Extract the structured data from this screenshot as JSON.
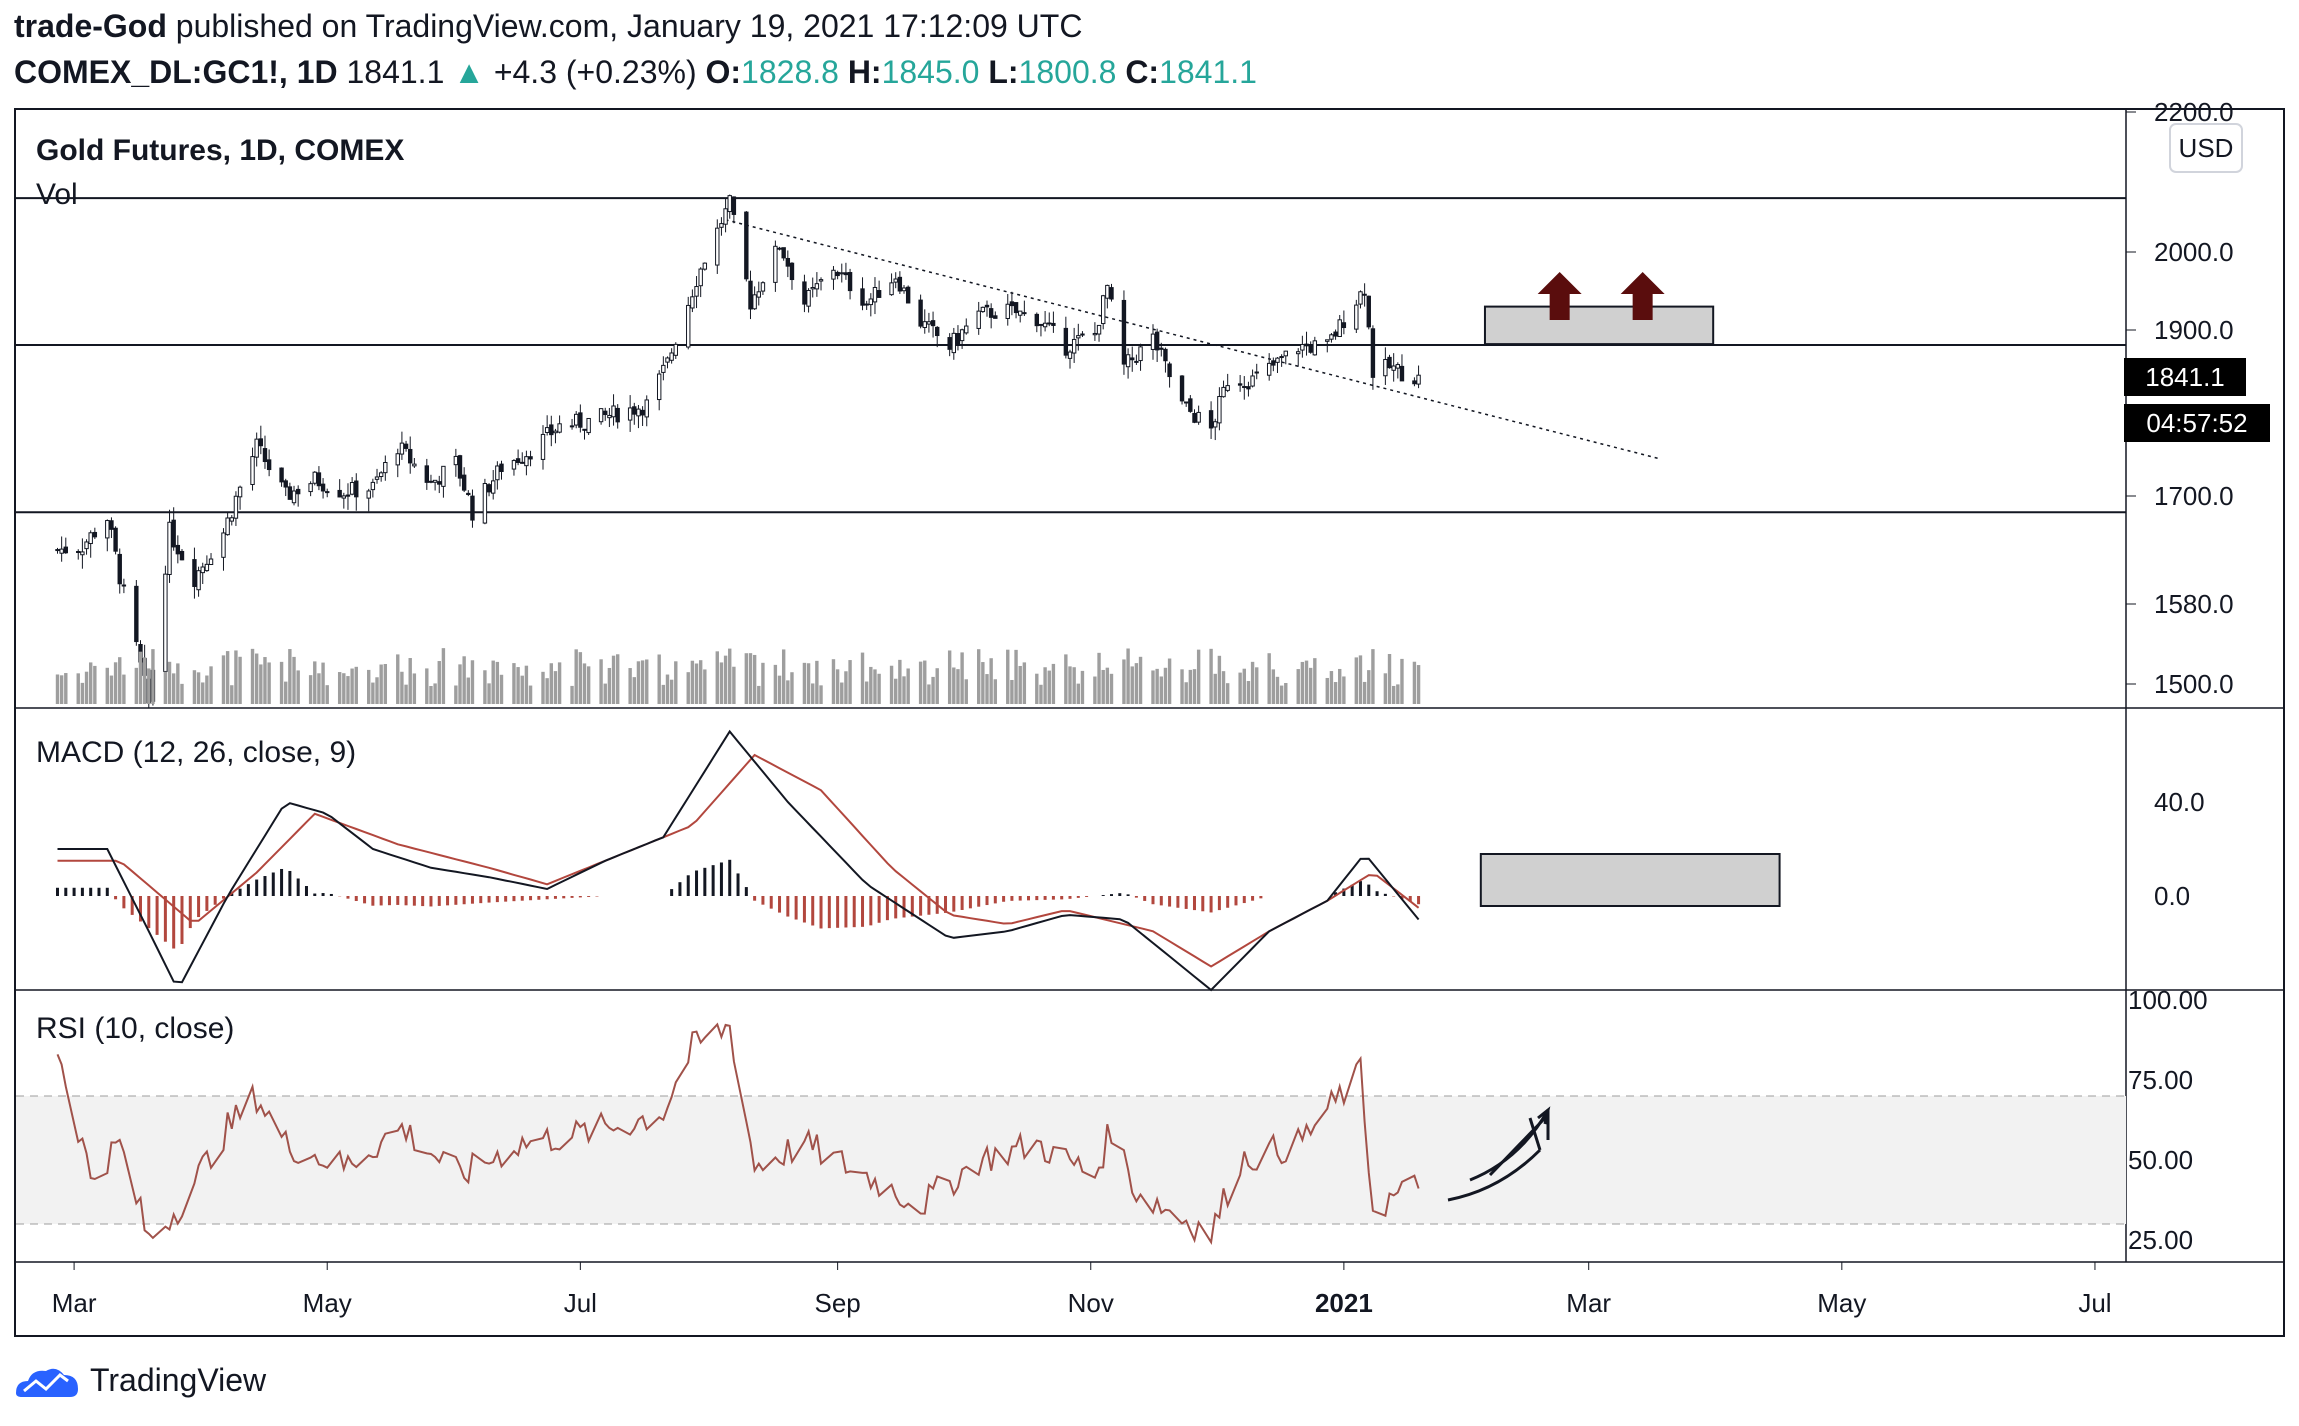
{
  "header": {
    "author": "trade-God",
    "published_text": "published on TradingView.com, January 19, 2021 17:12:09 UTC",
    "symbol": "COMEX_DL:GC1!, 1D",
    "last": "1841.1",
    "change_arrow": "▲",
    "change": "+4.3 (+0.23%)",
    "o_label": "O:",
    "o_value": "1828.8",
    "h_label": "H:",
    "h_value": "1845.0",
    "l_label": "L:",
    "l_value": "1800.8",
    "c_label": "C:",
    "c_value": "1841.1"
  },
  "footer": {
    "brand": "TradingView",
    "logo_icon": "tradingview-logo-icon"
  },
  "price_pane": {
    "title": "Gold Futures, 1D, COMEX",
    "vol_label": "Vol",
    "currency": "USD",
    "last_price_tag": "1841.1",
    "countdown_tag": "04:57:52"
  },
  "macd_pane": {
    "title": "MACD (12, 26, close, 9)"
  },
  "rsi_pane": {
    "title": "RSI (10, close)"
  },
  "colors": {
    "up": "#131722",
    "down": "#131722",
    "volume": "#9e9e9e",
    "macd_line": "#131722",
    "signal_line": "#b2473e",
    "hist_pos": "#131722",
    "hist_neg": "#b2473e",
    "rsi_line": "#a0524a",
    "zone_fill": "#d0d0d0",
    "arrow": "#5a0d0d"
  },
  "chart_data": [
    {
      "type": "candlestick",
      "title": "Gold Futures, 1D, COMEX",
      "ylim": [
        1480,
        2200
      ],
      "y_ticks": [
        "2200.0",
        "2000.0",
        "1900.0",
        "1700.0",
        "1580.0",
        "1500.0"
      ],
      "x_ticks": [
        "Mar",
        "May",
        "Jul",
        "Sep",
        "Nov",
        "2021",
        "Mar",
        "May",
        "Jul"
      ],
      "close_path": [
        [
          "2020-02-26",
          1640
        ],
        [
          "2020-03-03",
          1645
        ],
        [
          "2020-03-09",
          1676
        ],
        [
          "2020-03-13",
          1590
        ],
        [
          "2020-03-19",
          1480
        ],
        [
          "2020-03-24",
          1660
        ],
        [
          "2020-03-30",
          1610
        ],
        [
          "2020-04-06",
          1660
        ],
        [
          "2020-04-14",
          1760
        ],
        [
          "2020-04-21",
          1700
        ],
        [
          "2020-04-28",
          1720
        ],
        [
          "2020-05-05",
          1705
        ],
        [
          "2020-05-12",
          1710
        ],
        [
          "2020-05-18",
          1760
        ],
        [
          "2020-05-26",
          1715
        ],
        [
          "2020-06-01",
          1740
        ],
        [
          "2020-06-05",
          1683
        ],
        [
          "2020-06-12",
          1735
        ],
        [
          "2020-06-19",
          1755
        ],
        [
          "2020-06-26",
          1785
        ],
        [
          "2020-07-03",
          1790
        ],
        [
          "2020-07-10",
          1800
        ],
        [
          "2020-07-17",
          1810
        ],
        [
          "2020-07-22",
          1860
        ],
        [
          "2020-07-29",
          1965
        ],
        [
          "2020-08-06",
          2070
        ],
        [
          "2020-08-11",
          1935
        ],
        [
          "2020-08-18",
          2010
        ],
        [
          "2020-08-24",
          1935
        ],
        [
          "2020-08-31",
          1980
        ],
        [
          "2020-09-08",
          1935
        ],
        [
          "2020-09-15",
          1970
        ],
        [
          "2020-09-21",
          1910
        ],
        [
          "2020-09-28",
          1880
        ],
        [
          "2020-10-05",
          1920
        ],
        [
          "2020-10-12",
          1925
        ],
        [
          "2020-10-19",
          1915
        ],
        [
          "2020-10-26",
          1880
        ],
        [
          "2020-11-02",
          1895
        ],
        [
          "2020-11-05",
          1955
        ],
        [
          "2020-11-09",
          1855
        ],
        [
          "2020-11-16",
          1890
        ],
        [
          "2020-11-23",
          1810
        ],
        [
          "2020-11-30",
          1780
        ],
        [
          "2020-12-04",
          1840
        ],
        [
          "2020-12-10",
          1840
        ],
        [
          "2020-12-16",
          1860
        ],
        [
          "2020-12-21",
          1880
        ],
        [
          "2020-12-28",
          1880
        ],
        [
          "2021-01-06",
          1955
        ],
        [
          "2021-01-08",
          1850
        ],
        [
          "2021-01-12",
          1855
        ],
        [
          "2021-01-19",
          1841
        ]
      ],
      "horizontal_levels": [
        2077,
        1882,
        1682
      ],
      "trendline": [
        [
          "2020-08-05",
          2046
        ],
        [
          "2021-03-18",
          1745
        ]
      ],
      "target_zone": {
        "x_start": "2021-02-04",
        "x_end": "2021-03-31",
        "y_low": 1883,
        "y_high": 1930
      },
      "volume_scale": "relative"
    },
    {
      "type": "line",
      "title": "MACD (12, 26, close, 9)",
      "ylim": [
        -40,
        75
      ],
      "y_ticks": [
        "40.0",
        "0.0"
      ],
      "series": [
        {
          "values_path": [
            [
              "2020-02-26",
              20
            ],
            [
              "2020-03-09",
              20
            ],
            [
              "2020-03-19",
              -15
            ],
            [
              "2020-03-26",
              -40
            ],
            [
              "2020-04-07",
              0
            ],
            [
              "2020-04-21",
              40
            ],
            [
              "2020-05-01",
              35
            ],
            [
              "2020-05-12",
              20
            ],
            [
              "2020-05-26",
              12
            ],
            [
              "2020-06-09",
              8
            ],
            [
              "2020-06-23",
              3
            ],
            [
              "2020-07-07",
              15
            ],
            [
              "2020-07-21",
              25
            ],
            [
              "2020-08-06",
              70
            ],
            [
              "2020-08-20",
              40
            ],
            [
              "2020-09-08",
              5
            ],
            [
              "2020-09-28",
              -18
            ],
            [
              "2020-10-12",
              -15
            ],
            [
              "2020-10-26",
              -8
            ],
            [
              "2020-11-09",
              -10
            ],
            [
              "2020-11-30",
              -40
            ],
            [
              "2020-12-14",
              -15
            ],
            [
              "2020-12-28",
              -2
            ],
            [
              "2021-01-06",
              18
            ],
            [
              "2021-01-19",
              -10
            ]
          ]
        },
        {
          "values_path": [
            [
              "2020-02-26",
              15
            ],
            [
              "2020-03-12",
              15
            ],
            [
              "2020-03-30",
              -12
            ],
            [
              "2020-04-14",
              10
            ],
            [
              "2020-04-28",
              35
            ],
            [
              "2020-05-18",
              22
            ],
            [
              "2020-06-09",
              12
            ],
            [
              "2020-06-23",
              5
            ],
            [
              "2020-07-14",
              20
            ],
            [
              "2020-07-28",
              30
            ],
            [
              "2020-08-12",
              60
            ],
            [
              "2020-08-28",
              45
            ],
            [
              "2020-09-14",
              12
            ],
            [
              "2020-09-28",
              -8
            ],
            [
              "2020-10-12",
              -12
            ],
            [
              "2020-10-26",
              -6
            ],
            [
              "2020-11-16",
              -15
            ],
            [
              "2020-11-30",
              -30
            ],
            [
              "2020-12-14",
              -15
            ],
            [
              "2020-12-28",
              -2
            ],
            [
              "2021-01-08",
              10
            ],
            [
              "2021-01-19",
              -5
            ]
          ]
        }
      ]
    },
    {
      "type": "line",
      "title": "RSI (10, close)",
      "ylim": [
        20,
        100
      ],
      "y_ticks": [
        "100.00",
        "75.00",
        "50.00",
        "25.00"
      ],
      "band": [
        30,
        70
      ],
      "values_path": [
        [
          "2020-02-26",
          85
        ],
        [
          "2020-03-05",
          45
        ],
        [
          "2020-03-12",
          55
        ],
        [
          "2020-03-19",
          25
        ],
        [
          "2020-03-26",
          35
        ],
        [
          "2020-04-07",
          60
        ],
        [
          "2020-04-14",
          70
        ],
        [
          "2020-04-21",
          55
        ],
        [
          "2020-05-05",
          48
        ],
        [
          "2020-05-19",
          60
        ],
        [
          "2020-06-02",
          45
        ],
        [
          "2020-06-16",
          55
        ],
        [
          "2020-06-30",
          58
        ],
        [
          "2020-07-14",
          62
        ],
        [
          "2020-07-21",
          65
        ],
        [
          "2020-07-28",
          85
        ],
        [
          "2020-08-06",
          92
        ],
        [
          "2020-08-12",
          48
        ],
        [
          "2020-08-24",
          55
        ],
        [
          "2020-09-08",
          45
        ],
        [
          "2020-09-21",
          36
        ],
        [
          "2020-10-05",
          50
        ],
        [
          "2020-10-19",
          55
        ],
        [
          "2020-11-02",
          45
        ],
        [
          "2020-11-06",
          60
        ],
        [
          "2020-11-12",
          40
        ],
        [
          "2020-11-30",
          27
        ],
        [
          "2020-12-07",
          50
        ],
        [
          "2020-12-21",
          55
        ],
        [
          "2021-01-05",
          77
        ],
        [
          "2021-01-08",
          35
        ],
        [
          "2021-01-19",
          42
        ]
      ]
    }
  ]
}
